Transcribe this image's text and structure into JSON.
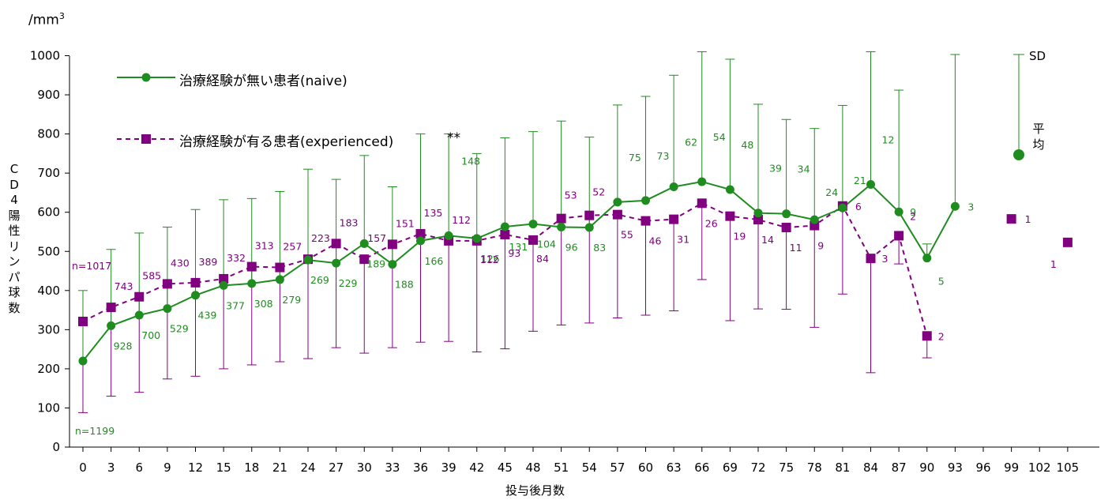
{
  "unit_label": "/mm",
  "unit_sup": "3",
  "chart_data": {
    "type": "line",
    "xlabel": "投与後月数",
    "ylabel": [
      "C",
      "D",
      "4",
      "陽",
      "性",
      "リ",
      "ン",
      "パ",
      "球",
      "数"
    ],
    "ylim": [
      0,
      1000
    ],
    "yticks": [
      0,
      100,
      200,
      300,
      400,
      500,
      600,
      700,
      800,
      900,
      1000
    ],
    "categories": [
      "0",
      "3",
      "6",
      "9",
      "12",
      "15",
      "18",
      "21",
      "24",
      "27",
      "30",
      "33",
      "36",
      "39",
      "42",
      "45",
      "48",
      "51",
      "54",
      "57",
      "60",
      "63",
      "66",
      "69",
      "72",
      "75",
      "78",
      "81",
      "84",
      "87",
      "90",
      "93",
      "96",
      "99",
      "102",
      "105"
    ],
    "grid": false,
    "legend_position": "top-left",
    "series": [
      {
        "name": "治療経験が無い患者(naive)",
        "color": "#1f8c1f",
        "line_style": "solid",
        "marker": "circle",
        "mean": [
          220,
          310,
          337,
          354,
          388,
          413,
          418,
          428,
          478,
          470,
          520,
          467,
          527,
          540,
          533,
          563,
          570,
          562,
          561,
          626,
          630,
          665,
          678,
          658,
          598,
          596,
          581,
          611,
          671,
          601,
          483,
          615,
          null,
          null,
          null,
          null
        ],
        "sd_upper": [
          400,
          505,
          547,
          562,
          607,
          632,
          635,
          653,
          710,
          684,
          745,
          665,
          800,
          800,
          750,
          790,
          806,
          833,
          792,
          874,
          896,
          950,
          1010,
          991,
          876,
          837,
          814,
          873,
          1010,
          912,
          519,
          1003,
          null,
          null,
          null,
          null
        ],
        "n": [
          "n=1199",
          "928",
          "700",
          "529",
          "439",
          "377",
          "308",
          "279",
          "269",
          "229",
          "189",
          "188",
          "166",
          "148",
          "126",
          "131",
          "104",
          "96",
          "83",
          "75",
          "73",
          "62",
          "54",
          "48",
          "39",
          "34",
          "24",
          "21",
          "12",
          "9",
          "5",
          "3",
          "",
          "",
          "",
          ""
        ]
      },
      {
        "name": "治療経験が有る患者(experienced)",
        "color": "#800080",
        "line_style": "dashed",
        "marker": "square",
        "mean": [
          321,
          357,
          384,
          417,
          420,
          430,
          461,
          459,
          480,
          520,
          480,
          518,
          545,
          527,
          527,
          543,
          529,
          584,
          592,
          594,
          578,
          582,
          623,
          590,
          581,
          561,
          566,
          616,
          482,
          540,
          284,
          null,
          null,
          583,
          null,
          523
        ],
        "sd_lower": [
          88,
          130,
          140,
          174,
          181,
          200,
          210,
          218,
          226,
          254,
          240,
          254,
          268,
          270,
          243,
          251,
          296,
          312,
          317,
          330,
          337,
          348,
          428,
          323,
          353,
          352,
          306,
          391,
          190,
          468,
          228,
          null,
          null,
          null,
          null,
          null
        ],
        "n": [
          "n=1017",
          "743",
          "585",
          "430",
          "389",
          "332",
          "313",
          "257",
          "223",
          "183",
          "157",
          "151",
          "135",
          "112",
          "112",
          "93",
          "84",
          "53",
          "52",
          "55",
          "46",
          "31",
          "26",
          "19",
          "14",
          "11",
          "9",
          "6",
          "3",
          "2",
          "2",
          "",
          "",
          "1",
          "",
          "1"
        ]
      }
    ],
    "significance": "**",
    "legend_mean": [
      "平",
      "均"
    ],
    "legend_sd": "SD"
  }
}
